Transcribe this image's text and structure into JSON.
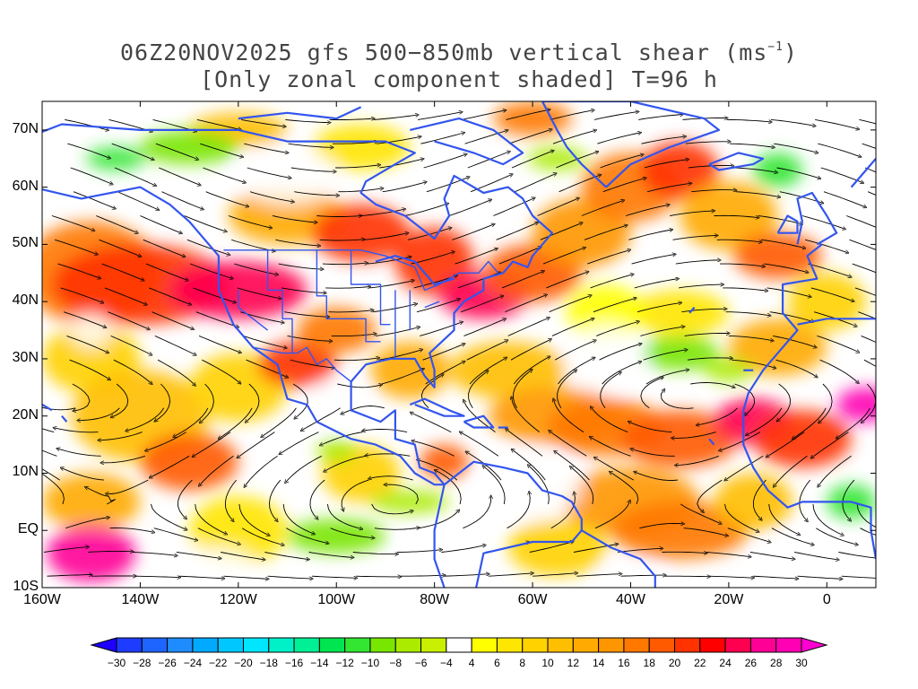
{
  "title": {
    "line1_prefix": "06Z20NOV2025 gfs 500−850mb vertical shear (ms",
    "line1_sup": "−1",
    "line1_suffix": ")",
    "line2": "[Only zonal component shaded] T=96 h"
  },
  "map": {
    "lon_range": [
      -160,
      10
    ],
    "lat_range": [
      -10,
      75
    ],
    "lat_labels": [
      "70N",
      "60N",
      "50N",
      "40N",
      "30N",
      "20N",
      "10N",
      "EQ",
      "10S"
    ],
    "lat_values": [
      70,
      60,
      50,
      40,
      30,
      20,
      10,
      0,
      -10
    ],
    "lon_labels": [
      "160W",
      "140W",
      "120W",
      "100W",
      "80W",
      "60W",
      "40W",
      "20W",
      "0"
    ],
    "lon_values": [
      -160,
      -140,
      -120,
      -100,
      -80,
      -60,
      -40,
      -20,
      0
    ],
    "coastline_color": "#3355ee",
    "streamline_color": "#000000"
  },
  "colorbar": {
    "labels": [
      "-30",
      "-28",
      "-26",
      "-24",
      "-22",
      "-20",
      "-18",
      "-16",
      "-14",
      "-12",
      "-10",
      "-8",
      "-6",
      "-4",
      "4",
      "6",
      "8",
      "10",
      "12",
      "14",
      "16",
      "18",
      "20",
      "22",
      "24",
      "26",
      "28",
      "30"
    ],
    "colors": [
      "#1e00ff",
      "#1e3cff",
      "#1e64ff",
      "#1e8cff",
      "#00aaff",
      "#00c8ff",
      "#00e6ff",
      "#00f0c8",
      "#00f096",
      "#00e650",
      "#32e632",
      "#78e600",
      "#aaeb00",
      "#c8f000",
      "#ffffff",
      "#ffff00",
      "#ffe600",
      "#ffd200",
      "#ffbe00",
      "#ffaa00",
      "#ff9600",
      "#ff7800",
      "#ff5a00",
      "#ff3200",
      "#ff0000",
      "#ff0050",
      "#ff0096",
      "#ff00b4",
      "#ff00d2"
    ]
  }
}
